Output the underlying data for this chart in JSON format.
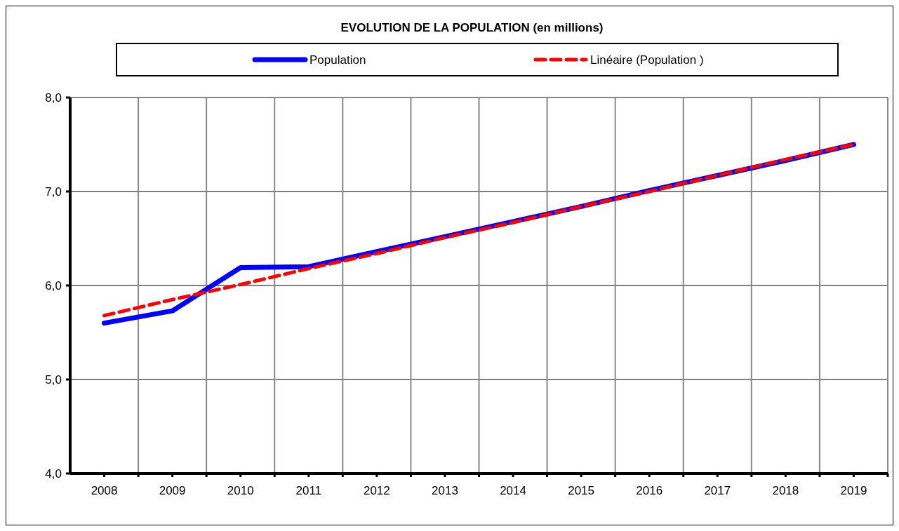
{
  "chart_data": {
    "type": "line",
    "title": "EVOLUTION DE LA POPULATION (en millions)",
    "categories": [
      "2008",
      "2009",
      "2010",
      "2011",
      "2012",
      "2013",
      "2014",
      "2015",
      "2016",
      "2017",
      "2018",
      "2019"
    ],
    "series": [
      {
        "name": "Population",
        "color": "#0000ff",
        "values": [
          5.6,
          5.73,
          6.19,
          6.2,
          6.36,
          6.52,
          6.68,
          6.84,
          7.01,
          7.17,
          7.33,
          7.5
        ]
      },
      {
        "name": "Linéaire (Population )",
        "color": "#ff0000",
        "line_style": "dashed",
        "values": [
          5.68,
          5.85,
          6.01,
          6.18,
          6.34,
          6.51,
          6.67,
          6.84,
          7.0,
          7.17,
          7.34,
          7.5
        ]
      }
    ],
    "ylim": [
      4,
      8
    ],
    "yticks": [
      {
        "value": 4,
        "label": "4,0"
      },
      {
        "value": 5,
        "label": "5,0"
      },
      {
        "value": 6,
        "label": "6,0"
      },
      {
        "value": 7,
        "label": "7,0"
      },
      {
        "value": 8,
        "label": "8,0"
      }
    ],
    "grid": true,
    "legend": "top"
  }
}
